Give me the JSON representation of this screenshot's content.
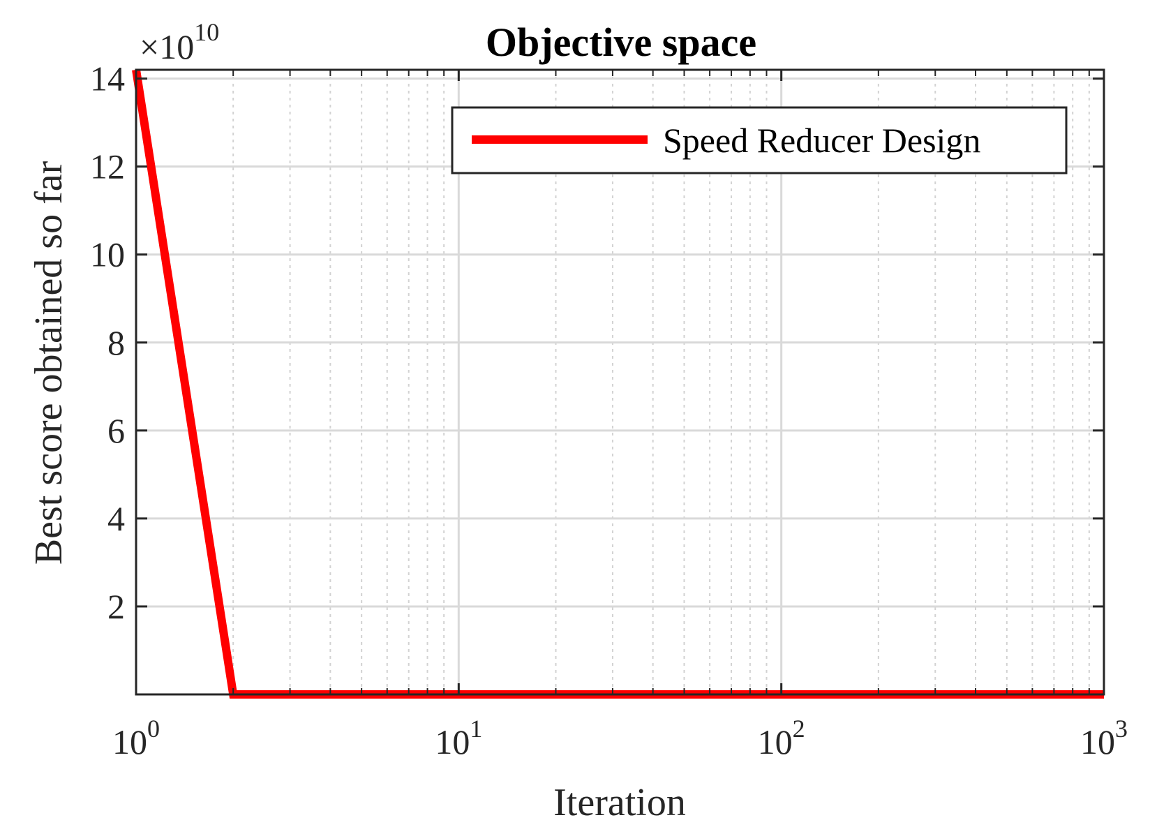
{
  "chart_data": {
    "type": "line",
    "title": "Objective space",
    "xlabel": "Iteration",
    "ylabel": "Best score obtained so far",
    "x_scale": "log",
    "xlim": [
      1,
      1000
    ],
    "ylim": [
      0,
      14.2
    ],
    "y_exponent_label": "×10",
    "y_exponent": "10",
    "x_ticks": [
      {
        "base": "10",
        "exp": "0",
        "value": 1
      },
      {
        "base": "10",
        "exp": "1",
        "value": 10
      },
      {
        "base": "10",
        "exp": "2",
        "value": 100
      },
      {
        "base": "10",
        "exp": "3",
        "value": 1000
      }
    ],
    "y_ticks": [
      {
        "label": "2",
        "value": 2
      },
      {
        "label": "4",
        "value": 4
      },
      {
        "label": "6",
        "value": 6
      },
      {
        "label": "8",
        "value": 8
      },
      {
        "label": "10",
        "value": 10
      },
      {
        "label": "12",
        "value": 12
      },
      {
        "label": "14",
        "value": 14
      }
    ],
    "grid": true,
    "legend_position": "top-right",
    "series": [
      {
        "name": "Speed Reducer Design",
        "color": "#ff0000",
        "x": [
          1,
          2,
          1000
        ],
        "y": [
          14.2,
          0,
          0
        ]
      }
    ]
  }
}
